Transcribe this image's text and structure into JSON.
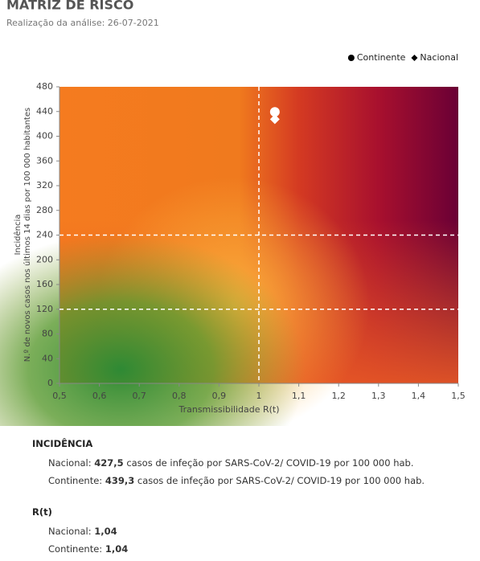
{
  "chart_data": {
    "type": "scatter",
    "title": "MATRIZ DE RISCO",
    "subtitle": "Realização da análise: 26-07-2021",
    "x_label": "Transmissibilidade R(t)",
    "y_label": [
      "Incidência",
      "N.º de novos casos nos últimos 14 dias por 100 000 habitantes"
    ],
    "xlim": [
      0.5,
      1.5
    ],
    "xticks": [
      {
        "value": 0.5,
        "label": "0,5"
      },
      {
        "value": 0.6,
        "label": "0,6"
      },
      {
        "value": 0.7,
        "label": "0,7"
      },
      {
        "value": 0.8,
        "label": "0,8"
      },
      {
        "value": 0.9,
        "label": "0,9"
      },
      1,
      {
        "value": 1.1,
        "label": "1,1"
      },
      {
        "value": 1.2,
        "label": "1,2"
      },
      {
        "value": 1.3,
        "label": "1,3"
      },
      {
        "value": 1.4,
        "label": "1,4"
      },
      {
        "value": 1.5,
        "label": "1,5"
      }
    ],
    "ylim": [
      0,
      480
    ],
    "yticks": [
      0,
      40,
      80,
      120,
      160,
      200,
      240,
      280,
      320,
      360,
      400,
      440,
      480
    ],
    "threshold_x": [
      1
    ],
    "threshold_y": [
      120,
      240
    ],
    "series": [
      {
        "name": "Continente",
        "marker": "circle",
        "color": "#ffffff",
        "x": [
          1.04
        ],
        "values": [
          439.3
        ]
      },
      {
        "name": "Nacional",
        "marker": "diamond",
        "color": "#ffffff",
        "x": [
          1.04
        ],
        "values": [
          427.5
        ]
      }
    ],
    "legend": "top-right"
  },
  "summary": {
    "incidence": {
      "heading": "INCIDÊNCIA",
      "rows": [
        {
          "label": "Nacional:",
          "value": "427,5",
          "text": "casos de infeção por SARS-CoV-2/ COVID-19 por 100 000 hab."
        },
        {
          "label": "Continente:",
          "value": "439,3",
          "text": "casos de infeção por SARS-CoV-2/ COVID-19 por 100 000 hab."
        }
      ]
    },
    "rt": {
      "heading": "R(t)",
      "rows": [
        {
          "label": "Nacional:",
          "value": "1,04"
        },
        {
          "label": "Continente:",
          "value": "1,04"
        }
      ]
    }
  }
}
